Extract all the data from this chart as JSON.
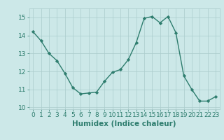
{
  "x": [
    0,
    1,
    2,
    3,
    4,
    5,
    6,
    7,
    8,
    9,
    10,
    11,
    12,
    13,
    14,
    15,
    16,
    17,
    18,
    19,
    20,
    21,
    22,
    23
  ],
  "y": [
    14.2,
    13.7,
    13.0,
    12.6,
    11.9,
    11.1,
    10.75,
    10.8,
    10.85,
    11.45,
    11.95,
    12.1,
    12.65,
    13.6,
    14.95,
    15.05,
    14.7,
    15.05,
    14.15,
    11.75,
    11.0,
    10.35,
    10.35,
    10.6
  ],
  "xlabel": "Humidex (Indice chaleur)",
  "xlim": [
    -0.5,
    23.5
  ],
  "ylim": [
    9.9,
    15.5
  ],
  "yticks": [
    10,
    11,
    12,
    13,
    14,
    15
  ],
  "xticks": [
    0,
    1,
    2,
    3,
    4,
    5,
    6,
    7,
    8,
    9,
    10,
    11,
    12,
    13,
    14,
    15,
    16,
    17,
    18,
    19,
    20,
    21,
    22,
    23
  ],
  "line_color": "#2e7d6e",
  "marker": "D",
  "marker_size": 2.2,
  "bg_color": "#cce8e8",
  "grid_color": "#aacccc",
  "line_width": 1.0,
  "tick_fontsize": 6.5,
  "xlabel_fontsize": 7.5
}
